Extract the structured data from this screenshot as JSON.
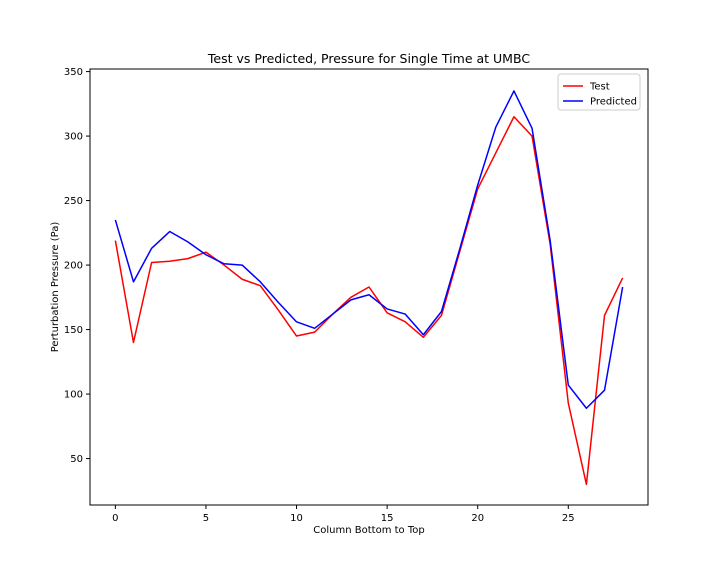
{
  "chart_data": {
    "type": "line",
    "title": "Test vs Predicted, Pressure for Single Time at UMBC",
    "xlabel": "Column Bottom to Top",
    "ylabel": "Perturbation Pressure (Pa)",
    "xlim": [
      -1.4,
      29.4
    ],
    "ylim": [
      14,
      352
    ],
    "xticks": [
      0,
      5,
      10,
      15,
      20,
      25
    ],
    "yticks": [
      50,
      100,
      150,
      200,
      250,
      300,
      350
    ],
    "grid": false,
    "legend_position": "top-right",
    "x": [
      0,
      1,
      2,
      3,
      4,
      5,
      6,
      7,
      8,
      9,
      10,
      11,
      12,
      13,
      14,
      15,
      16,
      17,
      18,
      19,
      20,
      21,
      22,
      23,
      24,
      25,
      26,
      27,
      28
    ],
    "series": [
      {
        "name": "Test",
        "color": "#ff0000",
        "values": [
          219,
          140,
          202,
          203,
          205,
          210,
          200,
          189,
          184,
          165,
          145,
          148,
          162,
          175,
          183,
          163,
          156,
          144,
          161,
          210,
          259,
          287,
          315,
          300,
          216,
          93,
          30,
          161,
          190
        ]
      },
      {
        "name": "Predicted",
        "color": "#0000ff",
        "values": [
          235,
          187,
          213,
          226,
          218,
          208,
          201,
          200,
          187,
          171,
          156,
          151,
          162,
          173,
          177,
          166,
          162,
          146,
          164,
          212,
          262,
          307,
          335,
          306,
          219,
          107,
          89,
          103,
          183
        ]
      }
    ]
  }
}
